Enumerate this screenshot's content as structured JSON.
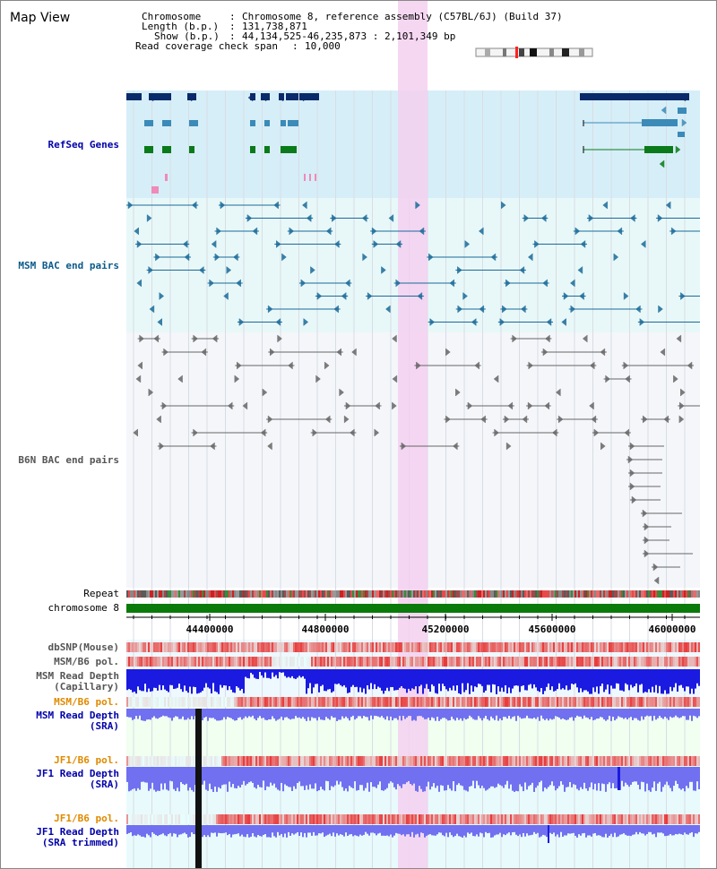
{
  "title": "Map View",
  "info": {
    "chromosome_key": "Chromosome",
    "chromosome_val": "Chromosome 8, reference assembly (C57BL/6J) (Build 37)",
    "length_key": "Length (b.p.)",
    "length_val": "131,738,871",
    "show_key": "Show (b.p.)",
    "show_val": "44,134,525-46,235,873 : 2,101,349 bp",
    "coverage_key": "Read coverage check span",
    "coverage_val": "10,000"
  },
  "tracks": {
    "refseq": "RefSeq Genes",
    "msm_bac": "MSM BAC end pairs",
    "b6n_bac": "B6N BAC end pairs",
    "repeat": "Repeat",
    "chromosome": "chromosome 8",
    "dbsnp": "dbSNP(Mouse)",
    "msm_b6_pol_1": "MSM/B6 pol.",
    "msm_depth_cap_1": "MSM Read Depth",
    "msm_depth_cap_2": "(Capillary)",
    "msm_b6_pol_2": "MSM/B6 pol.",
    "msm_depth_sra_1": "MSM Read Depth",
    "msm_depth_sra_2": "(SRA)",
    "jf1_pol_1": "JF1/B6 pol.",
    "jf1_depth_sra_1": "JF1 Read Depth",
    "jf1_depth_sra_2": "(SRA)",
    "jf1_pol_2": "JF1/B6 pol.",
    "jf1_depth_trim_1": "JF1 Read Depth",
    "jf1_depth_trim_2": "(SRA trimmed)"
  },
  "axis": {
    "ticks": [
      "44400000",
      "44800000",
      "45200000",
      "45600000",
      "46000000"
    ]
  },
  "colors": {
    "refseq_bg": "#d6eef8",
    "msm_bg": "#e8f8f8",
    "b6n_bg": "#f4f6fa",
    "highlight": "#f5d0f0",
    "gene_dark": "#0a2a6a",
    "gene_mid": "#3b8ab8",
    "gene_green": "#0a7a1a",
    "msm_pair": "#1a6a9a",
    "b6n_pair": "#666666",
    "chromosome": "#0a7a0a",
    "pol_red": "#e83a3a",
    "depth_blue": "#1a1ae0",
    "depth_light": "#7070f0",
    "label_blue": "#0000aa",
    "label_teal": "#0a5a8a",
    "label_orange": "#e08a00",
    "label_gray": "#555555"
  }
}
